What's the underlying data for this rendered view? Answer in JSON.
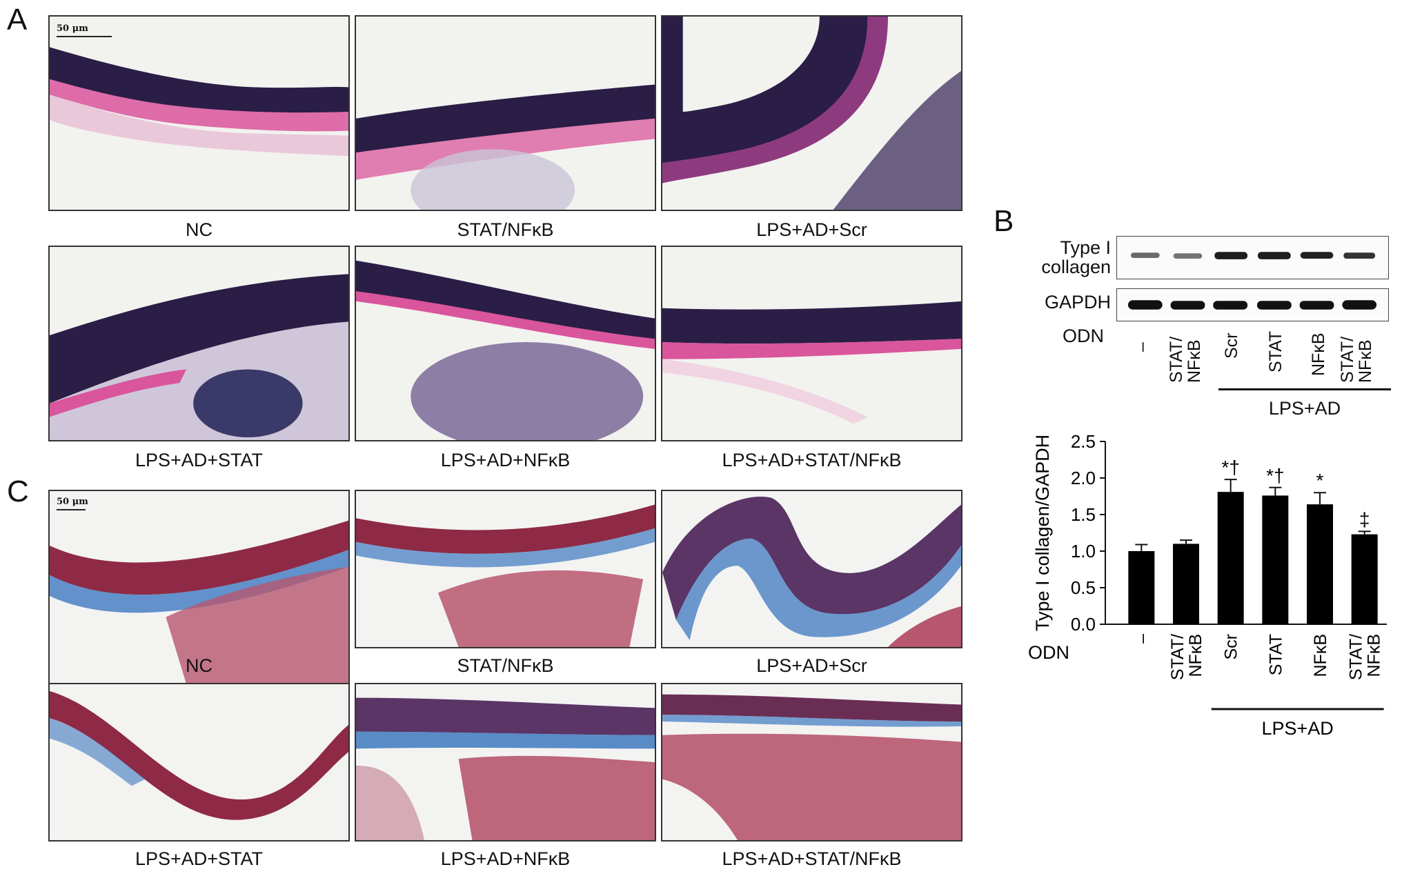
{
  "panels": {
    "A": {
      "letter": "A",
      "scale_bar": "50 μm",
      "captions": [
        "NC",
        "STAT/NFκB",
        "LPS+AD+Scr",
        "LPS+AD+STAT",
        "LPS+AD+NFκB",
        "LPS+AD+STAT/NFκB"
      ],
      "stain_colors": {
        "elastin": "#2a1d46",
        "collagen": "#d9559c",
        "background": "#f2f2ef"
      }
    },
    "B": {
      "letter": "B",
      "blot_labels": [
        "Type I collagen",
        "GAPDH"
      ],
      "odn_label": "ODN",
      "lane_labels": [
        "–",
        "STAT/ NFκB",
        "Scr",
        "STAT",
        "NFκB",
        "STAT/ NFκB"
      ],
      "group_label": "LPS+AD"
    },
    "C": {
      "letter": "C",
      "scale_bar": "50 μm",
      "captions": [
        "NC",
        "STAT/NFκB",
        "LPS+AD+Scr",
        "LPS+AD+STAT",
        "LPS+AD+NFκB",
        "LPS+AD+STAT/NFκB"
      ],
      "stain_colors": {
        "muscle": "#8e2a45",
        "collagen": "#3d78c0",
        "background": "#f3f3f2"
      }
    }
  },
  "chart_data": {
    "type": "bar",
    "ylabel": "Type I collagen/GAPDH",
    "xlabel": "ODN",
    "categories": [
      "–",
      "STAT/ NFκB",
      "Scr",
      "STAT",
      "NFκB",
      "STAT/ NFκB"
    ],
    "values": [
      1.0,
      1.1,
      1.81,
      1.76,
      1.64,
      1.23
    ],
    "errors": [
      0.09,
      0.05,
      0.17,
      0.11,
      0.16,
      0.04
    ],
    "annotations": [
      "",
      "",
      "*†",
      "*†",
      "*",
      "‡"
    ],
    "ylim": [
      0,
      2.5
    ],
    "yticks": [
      0.0,
      0.5,
      1.0,
      1.5,
      2.0,
      2.5
    ],
    "group": {
      "label": "LPS+AD",
      "from_index": 2,
      "to_index": 5
    },
    "bar_color": "#000000"
  }
}
